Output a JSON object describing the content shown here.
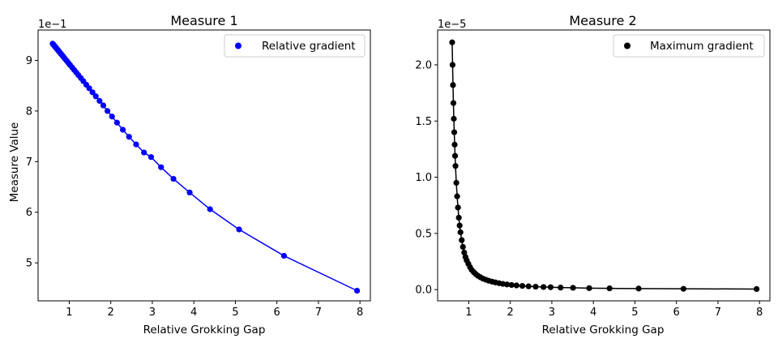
{
  "chart_data": [
    {
      "type": "line",
      "title": "Measure 1",
      "xlabel": "Relative Grokking Gap",
      "ylabel": "Measure Value",
      "y_offset_label": "1e−1",
      "xlim": [
        0.25,
        8.25
      ],
      "ylim": [
        4.25,
        9.6
      ],
      "x_ticks": [
        1,
        2,
        3,
        4,
        5,
        6,
        7,
        8
      ],
      "x_tick_labels": [
        "1",
        "2",
        "3",
        "4",
        "5",
        "6",
        "7",
        "8"
      ],
      "y_ticks": [
        5,
        6,
        7,
        8,
        9
      ],
      "y_tick_labels": [
        "5",
        "6",
        "7",
        "8",
        "9"
      ],
      "legend": {
        "label": "Relative gradient",
        "location": "upper-right"
      },
      "color": "#0000ff",
      "series": [
        {
          "name": "Relative gradient",
          "x": [
            0.6,
            0.62,
            0.64,
            0.66,
            0.68,
            0.7,
            0.72,
            0.74,
            0.77,
            0.8,
            0.83,
            0.86,
            0.9,
            0.94,
            0.98,
            1.02,
            1.07,
            1.12,
            1.17,
            1.22,
            1.28,
            1.34,
            1.41,
            1.48,
            1.56,
            1.64,
            1.73,
            1.82,
            1.92,
            2.03,
            2.15,
            2.29,
            2.44,
            2.61,
            2.8,
            2.97,
            3.21,
            3.51,
            3.9,
            4.39,
            5.09,
            6.17,
            7.93
          ],
          "y": [
            9.33,
            9.31,
            9.29,
            9.27,
            9.25,
            9.23,
            9.21,
            9.19,
            9.16,
            9.13,
            9.1,
            9.07,
            9.03,
            8.99,
            8.95,
            8.91,
            8.86,
            8.81,
            8.76,
            8.71,
            8.65,
            8.59,
            8.52,
            8.45,
            8.37,
            8.29,
            8.2,
            8.11,
            8.0,
            7.89,
            7.77,
            7.63,
            7.49,
            7.34,
            7.18,
            7.09,
            6.89,
            6.66,
            6.39,
            6.06,
            5.66,
            5.14,
            4.45
          ]
        }
      ]
    },
    {
      "type": "line",
      "title": "Measure 2",
      "xlabel": "Relative Grokking Gap",
      "ylabel": "",
      "y_offset_label": "1e−5",
      "xlim": [
        0.25,
        8.25
      ],
      "ylim": [
        -0.1,
        2.31
      ],
      "x_ticks": [
        1,
        2,
        3,
        4,
        5,
        6,
        7,
        8
      ],
      "x_tick_labels": [
        "1",
        "2",
        "3",
        "4",
        "5",
        "6",
        "7",
        "8"
      ],
      "y_ticks": [
        0.0,
        0.5,
        1.0,
        1.5,
        2.0
      ],
      "y_tick_labels": [
        "0.0",
        "0.5",
        "1.0",
        "1.5",
        "2.0"
      ],
      "legend": {
        "label": "Maximum gradient",
        "location": "upper-right"
      },
      "color": "#000000",
      "series": [
        {
          "name": "Maximum gradient",
          "x": [
            0.6,
            0.61,
            0.62,
            0.63,
            0.64,
            0.65,
            0.66,
            0.67,
            0.68,
            0.7,
            0.72,
            0.74,
            0.76,
            0.78,
            0.8,
            0.83,
            0.86,
            0.89,
            0.92,
            0.95,
            0.99,
            1.03,
            1.07,
            1.12,
            1.17,
            1.22,
            1.28,
            1.34,
            1.41,
            1.48,
            1.56,
            1.64,
            1.73,
            1.82,
            1.92,
            2.03,
            2.15,
            2.29,
            2.44,
            2.61,
            2.8,
            2.97,
            3.21,
            3.51,
            3.9,
            4.39,
            5.09,
            6.17,
            7.93
          ],
          "y": [
            2.2,
            2.0,
            1.82,
            1.66,
            1.52,
            1.4,
            1.29,
            1.19,
            1.1,
            0.95,
            0.83,
            0.73,
            0.64,
            0.57,
            0.51,
            0.44,
            0.38,
            0.33,
            0.29,
            0.26,
            0.23,
            0.2,
            0.175,
            0.155,
            0.138,
            0.123,
            0.11,
            0.098,
            0.088,
            0.079,
            0.071,
            0.064,
            0.057,
            0.051,
            0.046,
            0.041,
            0.037,
            0.033,
            0.029,
            0.026,
            0.023,
            0.021,
            0.018,
            0.016,
            0.013,
            0.011,
            0.009,
            0.007,
            0.005
          ]
        }
      ]
    }
  ]
}
